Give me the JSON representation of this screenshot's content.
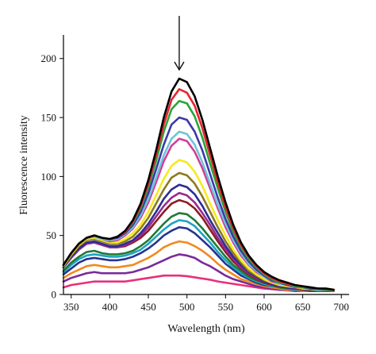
{
  "chart_data": {
    "type": "line",
    "title": "",
    "xlabel": "Wavelength (nm)",
    "ylabel": "Fluorescence intensity",
    "xlim": [
      340,
      710
    ],
    "ylim": [
      0,
      220
    ],
    "xticks": [
      350,
      400,
      450,
      500,
      550,
      600,
      650,
      700
    ],
    "yticks": [
      0,
      50,
      100,
      150,
      200
    ],
    "grid": false,
    "legend": "none",
    "annotation": "downward arrow above peak",
    "annotation_x": 490,
    "x": [
      340,
      350,
      360,
      370,
      380,
      390,
      400,
      410,
      420,
      430,
      440,
      450,
      460,
      470,
      480,
      490,
      500,
      510,
      520,
      530,
      540,
      550,
      560,
      570,
      580,
      590,
      600,
      610,
      620,
      630,
      640,
      650,
      660,
      670,
      680,
      690
    ],
    "series": [
      {
        "color": "#000000",
        "values": [
          25,
          35,
          43,
          48,
          50,
          48,
          47,
          49,
          54,
          63,
          77,
          97,
          122,
          150,
          172,
          183,
          180,
          168,
          148,
          124,
          100,
          78,
          59,
          44,
          33,
          25,
          19,
          15,
          12,
          10,
          8,
          7,
          6,
          5,
          5,
          4
        ]
      },
      {
        "color": "#e8242c",
        "values": [
          25,
          35,
          43,
          48,
          50,
          48,
          47,
          49,
          53,
          62,
          75,
          94,
          118,
          144,
          165,
          174,
          171,
          160,
          141,
          118,
          95,
          74,
          56,
          42,
          32,
          24,
          18,
          14,
          11,
          9,
          8,
          7,
          6,
          5,
          5,
          4
        ]
      },
      {
        "color": "#2aa53a",
        "values": [
          25,
          35,
          43,
          48,
          50,
          48,
          47,
          49,
          53,
          61,
          73,
          91,
          113,
          138,
          157,
          164,
          162,
          151,
          133,
          111,
          90,
          70,
          53,
          40,
          30,
          23,
          17,
          13,
          10,
          9,
          7,
          6,
          6,
          5,
          4,
          4
        ]
      },
      {
        "color": "#3b3aa8",
        "values": [
          25,
          35,
          43,
          48,
          50,
          48,
          47,
          48,
          52,
          59,
          70,
          86,
          106,
          127,
          144,
          150,
          148,
          138,
          122,
          102,
          82,
          64,
          49,
          37,
          28,
          21,
          16,
          12,
          10,
          8,
          7,
          6,
          5,
          5,
          4,
          4
        ]
      },
      {
        "color": "#6fc4d8",
        "values": [
          25,
          35,
          43,
          48,
          49,
          47,
          46,
          47,
          51,
          57,
          67,
          81,
          99,
          118,
          132,
          138,
          136,
          127,
          112,
          94,
          76,
          60,
          46,
          35,
          26,
          20,
          15,
          12,
          9,
          8,
          7,
          6,
          5,
          4,
          4,
          4
        ]
      },
      {
        "color": "#d33d98",
        "values": [
          25,
          35,
          43,
          48,
          49,
          47,
          45,
          46,
          50,
          56,
          65,
          78,
          95,
          113,
          126,
          132,
          130,
          121,
          107,
          90,
          73,
          57,
          44,
          33,
          25,
          19,
          15,
          11,
          9,
          8,
          6,
          6,
          5,
          4,
          4,
          4
        ]
      },
      {
        "color": "#f6ea1e",
        "values": [
          24,
          34,
          42,
          47,
          48,
          46,
          44,
          44,
          47,
          52,
          59,
          70,
          84,
          98,
          109,
          114,
          112,
          104,
          92,
          77,
          63,
          50,
          38,
          29,
          22,
          17,
          13,
          10,
          8,
          7,
          6,
          5,
          5,
          4,
          4,
          4
        ]
      },
      {
        "color": "#8c7a1e",
        "values": [
          24,
          33,
          41,
          46,
          47,
          45,
          43,
          43,
          45,
          49,
          56,
          65,
          77,
          89,
          99,
          103,
          101,
          94,
          83,
          70,
          57,
          45,
          35,
          27,
          20,
          16,
          12,
          10,
          8,
          7,
          6,
          5,
          4,
          4,
          4,
          3
        ]
      },
      {
        "color": "#2c2c96",
        "values": [
          23,
          32,
          39,
          44,
          45,
          43,
          41,
          41,
          43,
          46,
          52,
          60,
          70,
          81,
          89,
          93,
          91,
          85,
          75,
          63,
          52,
          41,
          32,
          25,
          19,
          15,
          11,
          9,
          7,
          6,
          5,
          5,
          4,
          4,
          4,
          3
        ]
      },
      {
        "color": "#9a2a8e",
        "values": [
          23,
          31,
          38,
          43,
          44,
          42,
          40,
          40,
          42,
          45,
          50,
          57,
          66,
          75,
          82,
          86,
          84,
          78,
          69,
          59,
          48,
          38,
          30,
          23,
          18,
          14,
          11,
          9,
          7,
          6,
          5,
          5,
          4,
          4,
          3,
          3
        ]
      },
      {
        "color": "#8a1e22",
        "values": [
          23,
          31,
          38,
          43,
          44,
          42,
          40,
          40,
          41,
          44,
          48,
          54,
          62,
          70,
          77,
          80,
          78,
          73,
          65,
          55,
          45,
          36,
          28,
          22,
          17,
          13,
          10,
          8,
          7,
          6,
          5,
          4,
          4,
          4,
          3,
          3
        ]
      },
      {
        "color": "#1f7a38",
        "values": [
          20,
          27,
          32,
          36,
          37,
          35,
          34,
          34,
          35,
          37,
          41,
          46,
          53,
          60,
          66,
          69,
          68,
          63,
          56,
          48,
          40,
          32,
          25,
          20,
          15,
          12,
          10,
          8,
          6,
          5,
          5,
          4,
          4,
          3,
          3,
          3
        ]
      },
      {
        "color": "#1fa3c4",
        "values": [
          19,
          25,
          30,
          33,
          34,
          33,
          32,
          32,
          33,
          35,
          38,
          43,
          49,
          55,
          60,
          63,
          62,
          58,
          51,
          44,
          36,
          29,
          23,
          18,
          14,
          11,
          9,
          7,
          6,
          5,
          4,
          4,
          4,
          3,
          3,
          3
        ]
      },
      {
        "color": "#23348f",
        "values": [
          17,
          22,
          27,
          30,
          31,
          30,
          29,
          29,
          30,
          32,
          35,
          39,
          44,
          50,
          54,
          57,
          56,
          52,
          46,
          40,
          33,
          26,
          21,
          16,
          13,
          10,
          8,
          7,
          6,
          5,
          4,
          4,
          3,
          3,
          3,
          3
        ]
      },
      {
        "color": "#f08a1e",
        "values": [
          14,
          18,
          21,
          24,
          25,
          24,
          23,
          23,
          24,
          25,
          28,
          31,
          35,
          40,
          43,
          45,
          44,
          41,
          37,
          32,
          26,
          21,
          17,
          13,
          11,
          9,
          7,
          6,
          5,
          4,
          4,
          3,
          3,
          3,
          3,
          3
        ]
      },
      {
        "color": "#7a2a9a",
        "values": [
          11,
          14,
          16,
          18,
          19,
          18,
          18,
          18,
          18,
          19,
          21,
          23,
          26,
          29,
          32,
          34,
          33,
          31,
          27,
          24,
          20,
          16,
          13,
          11,
          9,
          7,
          6,
          5,
          4,
          4,
          3,
          3,
          3,
          3,
          3,
          3
        ]
      },
      {
        "color": "#e8307a",
        "values": [
          6,
          8,
          9,
          10,
          11,
          11,
          11,
          11,
          11,
          12,
          13,
          14,
          15,
          16,
          16,
          16,
          15.5,
          14.5,
          13.5,
          12.5,
          11,
          10,
          9,
          8,
          7,
          6,
          5,
          4.5,
          4,
          3.5,
          3,
          3,
          3,
          3,
          3,
          3
        ]
      }
    ]
  }
}
